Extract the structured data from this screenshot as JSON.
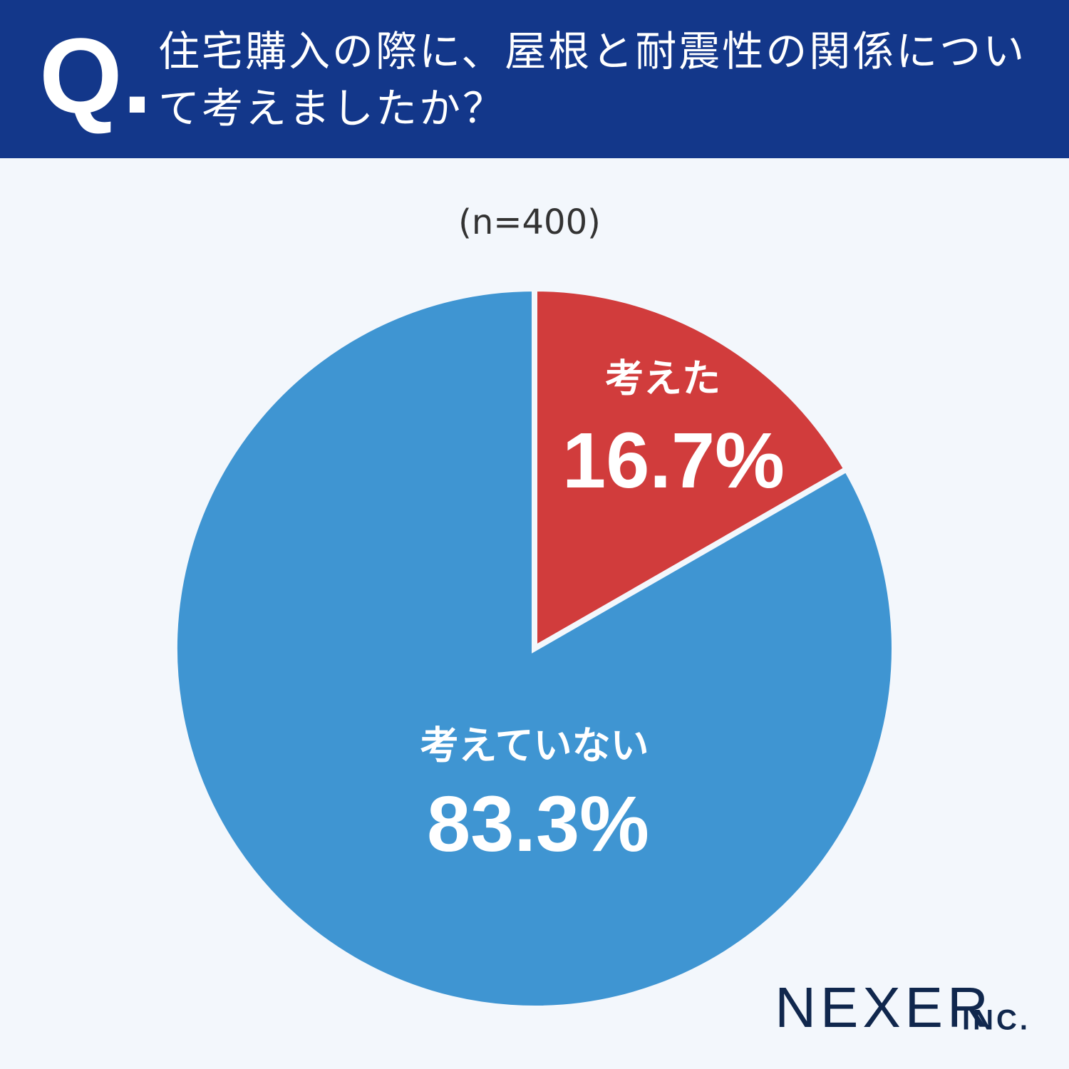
{
  "question_mark": "Q.",
  "brand": "NEXER",
  "brand_suffix": "INC.",
  "chart_data": {
    "type": "pie",
    "title": "住宅購入の際に、屋根と耐震性の関係について考えましたか？",
    "subtitle": "(n=400)",
    "categories": [
      "考えた",
      "考えていない"
    ],
    "values": [
      16.7,
      83.3
    ],
    "value_labels": [
      "16.7%",
      "83.3%"
    ],
    "colors": [
      "#d13c3c",
      "#3f95d2"
    ]
  }
}
